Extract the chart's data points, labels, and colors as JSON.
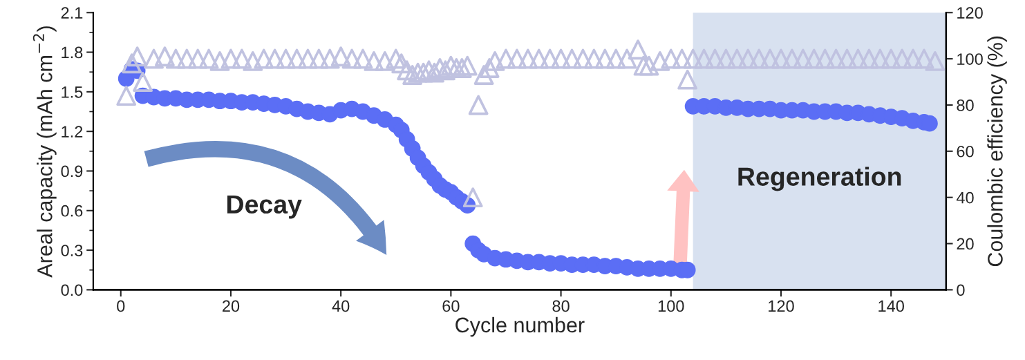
{
  "chart_data": {
    "type": "scatter",
    "xlabel": "Cycle number",
    "ylabel": "Areal capacity (mAh cm$^{−2}$)",
    "y2label": "Coulombic efficiency (%)",
    "xlim": [
      -5,
      150
    ],
    "xticks": [
      0,
      20,
      40,
      60,
      80,
      100,
      120,
      140
    ],
    "ylim": [
      0,
      2.1
    ],
    "yticks": [
      {
        "value": 0,
        "label": "0.0"
      },
      0.3,
      0.6,
      0.9,
      1.2,
      1.5,
      1.8,
      2.1
    ],
    "y2lim": [
      0,
      120
    ],
    "y2ticks": [
      0,
      20,
      40,
      60,
      80,
      100,
      120
    ],
    "grid": false,
    "annotations": [
      "Decay"
    ],
    "bands": [
      {
        "axis": "x",
        "from": 104,
        "to": 150,
        "label": "Regeneration",
        "color": "#d8e1f0"
      }
    ],
    "series": [
      {
        "marker": "circle",
        "color": "#5b6ef5",
        "x": [
          1,
          2,
          3,
          4,
          6,
          8,
          10,
          12,
          14,
          16,
          18,
          20,
          22,
          24,
          26,
          28,
          30,
          32,
          34,
          36,
          38,
          40,
          42,
          44,
          46,
          48,
          50,
          51,
          52,
          53,
          54,
          55,
          56,
          57,
          58,
          59,
          60,
          61,
          62,
          63,
          64,
          65,
          66,
          68,
          70,
          72,
          74,
          76,
          78,
          80,
          82,
          84,
          86,
          88,
          90,
          92,
          94,
          96,
          98,
          100,
          102,
          103,
          104,
          106,
          108,
          110,
          112,
          114,
          116,
          118,
          120,
          122,
          124,
          126,
          128,
          130,
          132,
          134,
          136,
          138,
          140,
          142,
          144,
          146,
          147
        ],
        "values": [
          1.6,
          1.67,
          1.66,
          1.47,
          1.46,
          1.45,
          1.45,
          1.44,
          1.44,
          1.44,
          1.43,
          1.43,
          1.42,
          1.42,
          1.41,
          1.4,
          1.39,
          1.37,
          1.35,
          1.34,
          1.33,
          1.36,
          1.37,
          1.35,
          1.32,
          1.29,
          1.25,
          1.21,
          1.14,
          1.07,
          1.0,
          0.94,
          0.89,
          0.84,
          0.79,
          0.76,
          0.74,
          0.7,
          0.67,
          0.64,
          0.35,
          0.3,
          0.27,
          0.24,
          0.23,
          0.22,
          0.21,
          0.21,
          0.2,
          0.2,
          0.19,
          0.19,
          0.19,
          0.18,
          0.18,
          0.17,
          0.16,
          0.16,
          0.16,
          0.16,
          0.15,
          0.15,
          1.39,
          1.39,
          1.39,
          1.38,
          1.38,
          1.37,
          1.37,
          1.37,
          1.36,
          1.36,
          1.36,
          1.35,
          1.35,
          1.35,
          1.34,
          1.34,
          1.33,
          1.32,
          1.31,
          1.3,
          1.28,
          1.27,
          1.26
        ]
      },
      {
        "marker": "triangle",
        "color": "#c0c2e0",
        "axis": "y2",
        "x": [
          1,
          2,
          3,
          4,
          6,
          8,
          10,
          12,
          14,
          16,
          18,
          20,
          22,
          24,
          26,
          28,
          30,
          32,
          34,
          36,
          38,
          40,
          42,
          44,
          46,
          48,
          50,
          51,
          52,
          53,
          54,
          55,
          56,
          57,
          58,
          59,
          60,
          61,
          62,
          63,
          64,
          65,
          66,
          67,
          68,
          70,
          72,
          74,
          76,
          78,
          80,
          82,
          84,
          86,
          88,
          90,
          92,
          94,
          95,
          96,
          98,
          100,
          102,
          103,
          104,
          106,
          108,
          110,
          112,
          114,
          116,
          118,
          120,
          122,
          124,
          126,
          128,
          130,
          132,
          134,
          136,
          138,
          140,
          142,
          144,
          146,
          148
        ],
        "values": [
          84,
          98,
          101,
          90,
          100,
          101,
          100,
          100,
          100,
          100,
          99,
          100,
          100,
          99,
          100,
          100,
          100,
          100,
          100,
          100,
          100,
          101,
          100,
          100,
          99,
          99,
          100,
          98,
          95,
          93,
          94,
          94,
          95,
          94,
          96,
          95,
          97,
          96,
          96,
          97,
          40,
          80,
          93,
          96,
          99,
          100,
          100,
          100,
          100,
          100,
          100,
          100,
          100,
          100,
          100,
          100,
          100,
          104,
          97,
          97,
          99,
          100,
          100,
          91,
          100,
          100,
          100,
          100,
          100,
          100,
          100,
          100,
          100,
          100,
          100,
          100,
          100,
          100,
          100,
          100,
          100,
          100,
          100,
          100,
          100,
          100,
          99
        ]
      }
    ]
  }
}
